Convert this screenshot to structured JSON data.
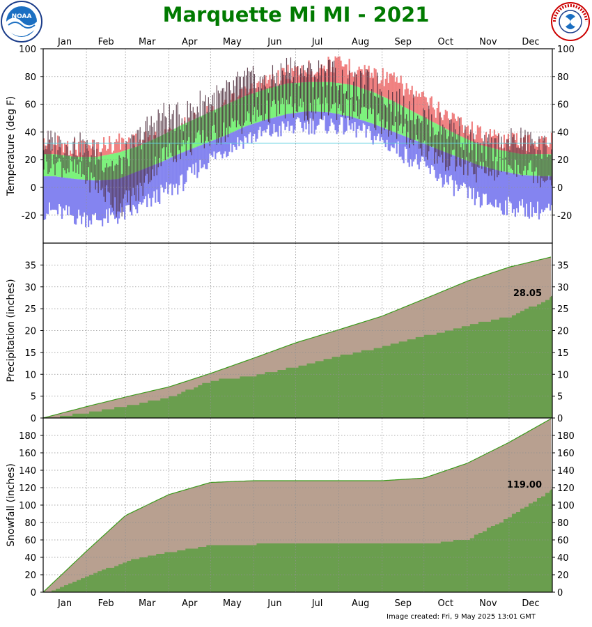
{
  "title": "Marquette Mi MI - 2021",
  "footer": "Image created: Fri, 9 May 2025 13:01 GMT",
  "logos": {
    "left": "noaa-logo",
    "right": "nws-logo",
    "left_text": "NOAA"
  },
  "colors": {
    "title": "#007a00",
    "record_band": "#f08080",
    "normal_band": "#7cf27c",
    "cold_band": "#8484f0",
    "actual_bar": "#4a2a3a",
    "normal_fill": "#b8a090",
    "actual_fill": "#6a9e4e",
    "line": "#3a9a1a"
  },
  "chart_data": [
    {
      "id": "temperature",
      "type": "bar",
      "ylabel": "Temperature (deg F)",
      "ylim": [
        -40,
        100
      ],
      "yticks": [
        -20,
        0,
        20,
        40,
        60,
        80,
        100
      ],
      "x_months_top": [
        "Jan",
        "Feb",
        "Mar",
        "Apr",
        "May",
        "Jun",
        "Jul",
        "Aug",
        "Sep",
        "Oct",
        "Nov",
        "Dec"
      ],
      "grid": true,
      "series": [
        {
          "role": "record-high",
          "values": [
            38,
            36,
            36,
            40,
            40,
            42,
            50,
            58,
            64,
            74,
            82,
            90,
            92,
            96,
            94,
            90,
            84,
            74,
            64,
            55,
            46,
            42,
            40,
            40
          ]
        },
        {
          "role": "normal-high",
          "values": [
            24,
            22,
            22,
            25,
            30,
            37,
            45,
            52,
            59,
            66,
            71,
            75,
            76,
            76,
            74,
            69,
            62,
            54,
            46,
            38,
            31,
            27,
            24,
            24
          ]
        },
        {
          "role": "normal-low",
          "values": [
            8,
            6,
            5,
            6,
            12,
            18,
            25,
            31,
            37,
            44,
            49,
            53,
            55,
            54,
            51,
            46,
            40,
            34,
            28,
            22,
            16,
            12,
            9,
            8
          ]
        },
        {
          "role": "record-low",
          "values": [
            -24,
            -28,
            -30,
            -28,
            -22,
            -12,
            -4,
            10,
            20,
            28,
            32,
            36,
            38,
            38,
            36,
            30,
            22,
            12,
            2,
            -8,
            -16,
            -20,
            -22,
            -24
          ]
        },
        {
          "role": "actual-high",
          "values": [
            32,
            30,
            24,
            14,
            36,
            52,
            50,
            62,
            66,
            78,
            74,
            86,
            82,
            84,
            72,
            76,
            62,
            56,
            44,
            42,
            26,
            30,
            34,
            28
          ]
        },
        {
          "role": "actual-low",
          "values": [
            18,
            12,
            2,
            -14,
            -4,
            22,
            28,
            34,
            40,
            48,
            54,
            58,
            54,
            58,
            56,
            50,
            42,
            34,
            22,
            18,
            10,
            14,
            16,
            8
          ]
        }
      ]
    },
    {
      "id": "precipitation",
      "type": "area",
      "ylabel": "Precipitation (inches)",
      "ylim": [
        0,
        40
      ],
      "yticks": [
        0,
        5,
        10,
        15,
        20,
        25,
        30,
        35
      ],
      "grid": true,
      "end_label": "28.05",
      "series": [
        {
          "role": "normal-cumulative",
          "x": [
            0,
            31,
            59,
            90,
            120,
            151,
            181,
            212,
            243,
            273,
            304,
            334,
            365
          ],
          "values": [
            0,
            2.6,
            4.8,
            7.1,
            10.2,
            13.7,
            17.2,
            20.2,
            23.3,
            27.2,
            31.3,
            34.5,
            36.9
          ]
        },
        {
          "role": "actual-cumulative",
          "x": [
            0,
            31,
            59,
            90,
            120,
            151,
            181,
            212,
            243,
            273,
            304,
            334,
            365
          ],
          "values": [
            0,
            1.5,
            3.0,
            5.0,
            8.8,
            10.0,
            12.0,
            14.5,
            16.5,
            19.0,
            21.5,
            23.5,
            28.05
          ]
        }
      ]
    },
    {
      "id": "snowfall",
      "type": "area",
      "ylabel": "Snowfall (inches)",
      "ylim": [
        0,
        200
      ],
      "yticks": [
        0,
        20,
        40,
        60,
        80,
        100,
        120,
        140,
        160,
        180
      ],
      "x_months_bottom": [
        "Jan",
        "Feb",
        "Mar",
        "Apr",
        "May",
        "Jun",
        "Jul",
        "Aug",
        "Sep",
        "Oct",
        "Nov",
        "Dec"
      ],
      "grid": true,
      "end_label": "119.00",
      "series": [
        {
          "role": "normal-cumulative",
          "x": [
            0,
            31,
            59,
            90,
            120,
            151,
            181,
            212,
            243,
            273,
            304,
            334,
            365
          ],
          "values": [
            0,
            47,
            88,
            112,
            126,
            128,
            128,
            128,
            128,
            131,
            148,
            172,
            200
          ]
        },
        {
          "role": "actual-cumulative",
          "x": [
            0,
            31,
            59,
            90,
            120,
            151,
            181,
            212,
            243,
            273,
            304,
            334,
            365
          ],
          "values": [
            0,
            19,
            37,
            47,
            55,
            56,
            56,
            56,
            56,
            56,
            62,
            88,
            119
          ]
        }
      ]
    }
  ]
}
